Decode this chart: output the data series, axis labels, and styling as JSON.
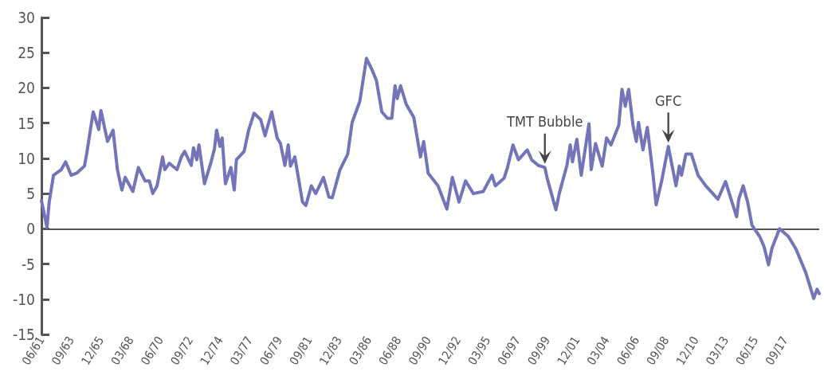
{
  "chart_data": {
    "type": "line",
    "x": [
      "1961-06",
      "1961-11",
      "1962-01",
      "1962-05",
      "1962-12",
      "1963-04",
      "1963-09",
      "1964-02",
      "1964-09",
      "1964-11",
      "1965-05",
      "1965-10",
      "1965-12",
      "1966-06",
      "1966-11",
      "1967-03",
      "1967-07",
      "1967-10",
      "1968-05",
      "1968-10",
      "1969-04",
      "1969-08",
      "1969-11",
      "1970-03",
      "1970-08",
      "1970-10",
      "1971-02",
      "1971-09",
      "1972-01",
      "1972-04",
      "1972-10",
      "1972-12",
      "1973-03",
      "1973-05",
      "1973-10",
      "1974-04",
      "1974-07",
      "1974-09",
      "1974-12",
      "1975-02",
      "1975-05",
      "1975-10",
      "1976-01",
      "1976-03",
      "1976-10",
      "1977-02",
      "1977-07",
      "1978-01",
      "1978-05",
      "1978-11",
      "1979-04",
      "1979-07",
      "1979-11",
      "1980-02",
      "1980-04",
      "1980-08",
      "1981-03",
      "1981-06",
      "1981-11",
      "1982-03",
      "1982-10",
      "1983-03",
      "1983-06",
      "1984-01",
      "1984-08",
      "1984-12",
      "1985-07",
      "1986-01",
      "1986-06",
      "1986-10",
      "1987-03",
      "1987-08",
      "1987-12",
      "1988-03",
      "1988-05",
      "1988-08",
      "1989-01",
      "1989-08",
      "1990-02",
      "1990-05",
      "1990-09",
      "1991-06",
      "1992-02",
      "1992-07",
      "1993-01",
      "1993-07",
      "1994-02",
      "1994-11",
      "1995-07",
      "1995-10",
      "1996-06",
      "1996-09",
      "1997-02",
      "1997-07",
      "1998-03",
      "1998-07",
      "1999-01",
      "1999-07",
      "1999-09",
      "2000-05",
      "2000-08",
      "2001-03",
      "2001-06",
      "2001-08",
      "2001-12",
      "2002-04",
      "2002-11",
      "2003-01",
      "2003-05",
      "2003-11",
      "2004-03",
      "2004-07",
      "2005-02",
      "2005-05",
      "2005-08",
      "2005-11",
      "2006-03",
      "2006-06",
      "2006-08",
      "2006-12",
      "2007-04",
      "2007-09",
      "2007-12",
      "2008-05",
      "2008-11",
      "2009-06",
      "2009-09",
      "2009-11",
      "2010-03",
      "2010-08",
      "2011-02",
      "2011-09",
      "2012-08",
      "2013-03",
      "2014-01",
      "2014-03",
      "2014-07",
      "2014-11",
      "2015-03",
      "2015-10",
      "2016-02",
      "2016-06",
      "2016-09",
      "2017-04",
      "2017-12",
      "2018-07",
      "2019-04",
      "2019-11",
      "2020-02",
      "2020-04"
    ],
    "series": [
      {
        "color": "#7474b8",
        "values": [
          4.0,
          0.2,
          3.8,
          7.6,
          8.4,
          9.5,
          7.6,
          7.9,
          8.9,
          10.6,
          16.6,
          14.1,
          16.8,
          12.4,
          14.0,
          8.4,
          5.5,
          7.3,
          5.3,
          8.7,
          6.8,
          6.8,
          5.0,
          6.1,
          10.2,
          8.4,
          9.3,
          8.4,
          10.2,
          11.0,
          9.0,
          11.5,
          9.8,
          11.9,
          6.4,
          9.5,
          11.3,
          14.0,
          11.7,
          12.9,
          6.4,
          8.7,
          5.5,
          9.8,
          11.0,
          14.0,
          16.4,
          15.5,
          13.2,
          16.6,
          12.9,
          12.1,
          9.0,
          11.9,
          8.9,
          10.2,
          3.8,
          3.3,
          6.1,
          5.0,
          7.3,
          4.5,
          4.4,
          8.4,
          10.6,
          15.1,
          18.1,
          24.2,
          22.6,
          21.1,
          16.6,
          15.7,
          15.7,
          20.3,
          18.5,
          20.3,
          17.7,
          15.8,
          10.2,
          12.4,
          7.9,
          6.1,
          2.8,
          7.3,
          3.8,
          6.8,
          5.0,
          5.3,
          7.6,
          6.1,
          7.2,
          8.7,
          11.9,
          9.8,
          11.2,
          9.8,
          9.0,
          8.7,
          7.2,
          2.7,
          5.0,
          9.0,
          11.9,
          9.5,
          12.7,
          7.6,
          14.9,
          8.4,
          12.1,
          8.9,
          12.9,
          11.9,
          14.7,
          19.8,
          17.4,
          19.8,
          14.7,
          12.4,
          15.1,
          11.2,
          14.4,
          7.9,
          3.4,
          6.8,
          11.7,
          6.1,
          8.9,
          7.6,
          10.6,
          10.6,
          7.6,
          6.1,
          4.2,
          6.7,
          1.7,
          4.2,
          6.1,
          3.8,
          0.5,
          -1.1,
          -2.6,
          -5.1,
          -2.8,
          0.0,
          -1.1,
          -2.9,
          -6.3,
          -9.9,
          -8.6,
          -9.2
        ]
      }
    ],
    "xlim": [
      "1961-06",
      "2020-04"
    ],
    "xticks": [
      {
        "value": "1961-06",
        "label": "06/61"
      },
      {
        "value": "1963-09",
        "label": "09/63"
      },
      {
        "value": "1965-12",
        "label": "12/65"
      },
      {
        "value": "1968-03",
        "label": "03/68"
      },
      {
        "value": "1970-06",
        "label": "06/70"
      },
      {
        "value": "1972-09",
        "label": "09/72"
      },
      {
        "value": "1974-12",
        "label": "12/74"
      },
      {
        "value": "1977-03",
        "label": "03/77"
      },
      {
        "value": "1979-06",
        "label": "06/79"
      },
      {
        "value": "1981-09",
        "label": "09/81"
      },
      {
        "value": "1983-12",
        "label": "12/83"
      },
      {
        "value": "1986-03",
        "label": "03/86"
      },
      {
        "value": "1988-06",
        "label": "06/88"
      },
      {
        "value": "1990-09",
        "label": "09/90"
      },
      {
        "value": "1992-12",
        "label": "12/92"
      },
      {
        "value": "1995-03",
        "label": "03/95"
      },
      {
        "value": "1997-06",
        "label": "06/97"
      },
      {
        "value": "1999-09",
        "label": "09/99"
      },
      {
        "value": "2001-12",
        "label": "12/01"
      },
      {
        "value": "2004-03",
        "label": "03/04"
      },
      {
        "value": "2006-06",
        "label": "06/06"
      },
      {
        "value": "2008-09",
        "label": "09/08"
      },
      {
        "value": "2010-12",
        "label": "12/10"
      },
      {
        "value": "2013-03",
        "label": "03/13"
      },
      {
        "value": "2015-06",
        "label": "06/15"
      },
      {
        "value": "2017-09",
        "label": "09/17"
      }
    ],
    "ylim": [
      -15,
      30
    ],
    "yticks": [
      -15,
      -10,
      -5,
      0,
      5,
      10,
      15,
      20,
      25,
      30
    ],
    "ref_lines": [
      {
        "axis": "y",
        "value": 0,
        "color": "#555555"
      }
    ],
    "annotations": [
      {
        "text": "TMT Bubble",
        "x": "1999-07",
        "y": 8.7
      },
      {
        "text": "GFC",
        "x": "2008-11",
        "y": 11.7
      }
    ],
    "grid": false,
    "marker": "none",
    "line_style": "solid"
  }
}
